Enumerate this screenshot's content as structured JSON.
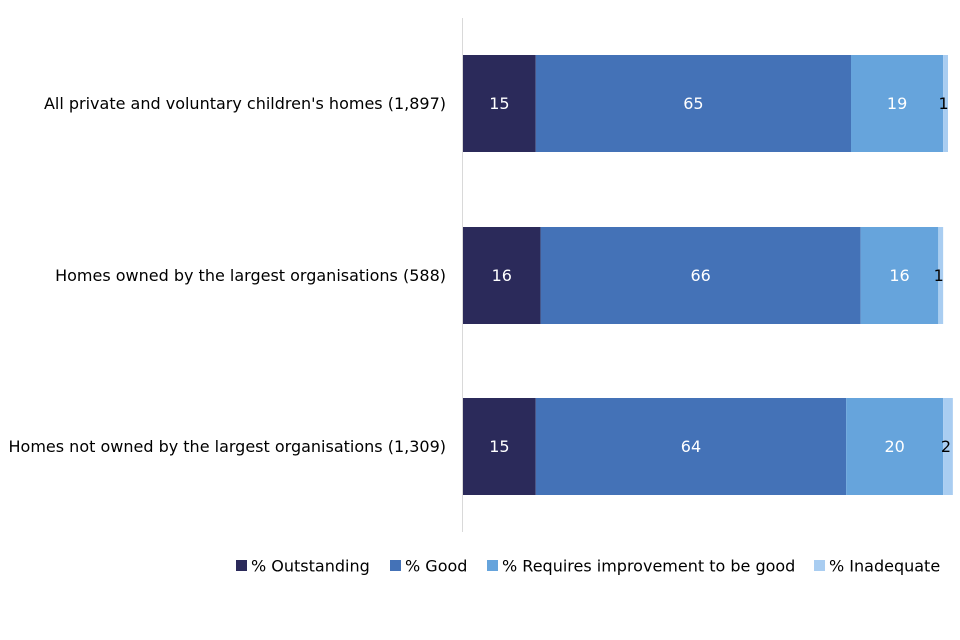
{
  "chart_data": {
    "type": "bar",
    "orientation": "horizontal",
    "stacked": true,
    "title": "",
    "xlabel": "",
    "ylabel": "",
    "xlim": [
      0,
      100
    ],
    "grid": false,
    "legend_position": "bottom",
    "categories": [
      "All private and voluntary children's homes (1,897)",
      "Homes owned by the largest organisations (588)",
      "Homes not owned by the largest organisations (1,309)"
    ],
    "series": [
      {
        "name": "% Outstanding",
        "color": "#2b2a5a",
        "values": [
          15,
          16,
          15
        ]
      },
      {
        "name": "% Good",
        "color": "#4472b7",
        "values": [
          65,
          66,
          64
        ]
      },
      {
        "name": "% Requires improvement to be good",
        "color": "#66a4dc",
        "values": [
          19,
          16,
          20
        ]
      },
      {
        "name": "% Inadequate",
        "color": "#a9cdf1",
        "values": [
          1,
          1,
          2
        ]
      }
    ]
  }
}
